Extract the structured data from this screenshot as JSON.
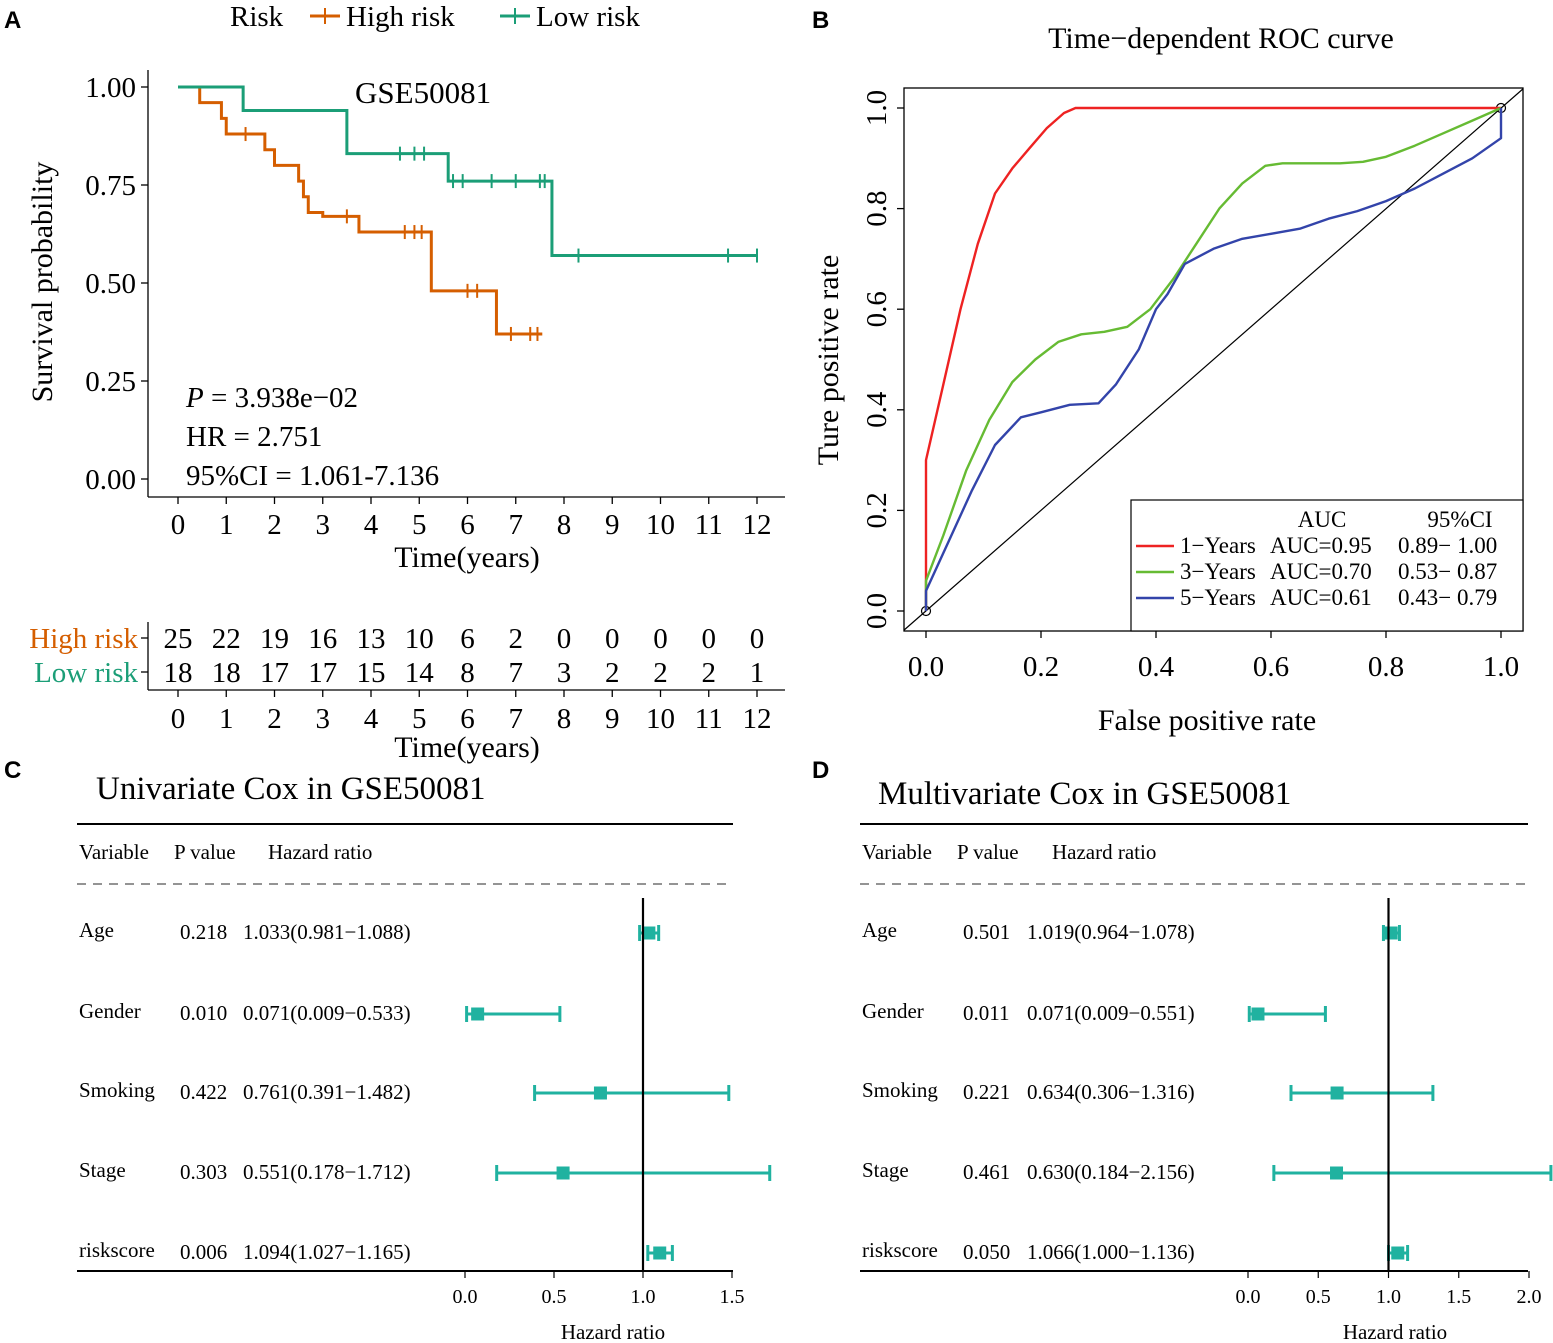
{
  "panels": {
    "a": "A",
    "b": "B",
    "c": "C",
    "d": "D"
  },
  "colors": {
    "high": "#d55e00",
    "low": "#1b9e77",
    "forest": "#20b2a0",
    "roc1": "#ee2222",
    "roc3": "#66bb33",
    "roc5": "#3344aa"
  },
  "chart_data": [
    {
      "type": "line",
      "subtype": "kaplan-meier",
      "title": "GSE50081",
      "xlabel": "Time(years)",
      "ylabel": "Survival probability",
      "xlim": [
        0,
        12
      ],
      "ylim": [
        0,
        1
      ],
      "x_ticks": [
        "0",
        "1",
        "2",
        "3",
        "4",
        "5",
        "6",
        "7",
        "8",
        "9",
        "10",
        "11",
        "12"
      ],
      "y_ticks": [
        "0.00",
        "0.25",
        "0.50",
        "0.75",
        "1.00"
      ],
      "legend": {
        "title": "Risk",
        "entries": [
          "High risk",
          "Low risk"
        ]
      },
      "stats": {
        "p_label": "P",
        "p_value": "= 3.938e−02",
        "hr": "HR = 2.751",
        "ci": "95%CI = 1.061-7.136"
      },
      "series": [
        {
          "name": "High risk",
          "color": "#d55e00",
          "steps": [
            [
              0,
              1.0
            ],
            [
              0.45,
              0.96
            ],
            [
              0.9,
              0.92
            ],
            [
              1.0,
              0.88
            ],
            [
              1.8,
              0.84
            ],
            [
              2.0,
              0.8
            ],
            [
              2.5,
              0.76
            ],
            [
              2.6,
              0.72
            ],
            [
              2.7,
              0.68
            ],
            [
              3.0,
              0.67
            ],
            [
              3.75,
              0.63
            ],
            [
              5.25,
              0.48
            ],
            [
              6.6,
              0.37
            ],
            [
              7.55,
              0.37
            ]
          ],
          "censor": [
            [
              1.4,
              0.88
            ],
            [
              3.5,
              0.67
            ],
            [
              4.7,
              0.63
            ],
            [
              4.9,
              0.63
            ],
            [
              5.05,
              0.63
            ],
            [
              6.0,
              0.48
            ],
            [
              6.2,
              0.48
            ],
            [
              6.9,
              0.37
            ],
            [
              7.3,
              0.37
            ],
            [
              7.45,
              0.37
            ]
          ]
        },
        {
          "name": "Low risk",
          "color": "#1b9e77",
          "steps": [
            [
              0,
              1.0
            ],
            [
              1.35,
              0.94
            ],
            [
              3.5,
              0.83
            ],
            [
              5.6,
              0.76
            ],
            [
              7.75,
              0.57
            ],
            [
              12.0,
              0.57
            ]
          ],
          "censor": [
            [
              4.6,
              0.83
            ],
            [
              4.9,
              0.83
            ],
            [
              5.1,
              0.83
            ],
            [
              5.7,
              0.76
            ],
            [
              5.9,
              0.76
            ],
            [
              6.5,
              0.76
            ],
            [
              7.0,
              0.76
            ],
            [
              7.5,
              0.76
            ],
            [
              7.6,
              0.76
            ],
            [
              8.3,
              0.57
            ],
            [
              11.4,
              0.57
            ],
            [
              12.0,
              0.57
            ]
          ]
        }
      ],
      "risk_table": {
        "xlabel": "Time(years)",
        "rows": [
          {
            "label": "High risk",
            "color": "#d55e00",
            "values": [
              "25",
              "22",
              "19",
              "16",
              "13",
              "10",
              "6",
              "2",
              "0",
              "0",
              "0",
              "0",
              "0"
            ]
          },
          {
            "label": "Low risk",
            "color": "#1b9e77",
            "values": [
              "18",
              "18",
              "17",
              "17",
              "15",
              "14",
              "8",
              "7",
              "3",
              "2",
              "2",
              "2",
              "1"
            ]
          }
        ]
      }
    },
    {
      "type": "line",
      "subtype": "roc",
      "title": "Time−dependent ROC curve",
      "xlabel": "False positive rate",
      "ylabel": "Ture positive rate",
      "xlim": [
        0,
        1
      ],
      "ylim": [
        0,
        1
      ],
      "x_ticks": [
        "0.0",
        "0.2",
        "0.4",
        "0.6",
        "0.8",
        "1.0"
      ],
      "y_ticks": [
        "0.0",
        "0.2",
        "0.4",
        "0.6",
        "0.8",
        "1.0"
      ],
      "legend": {
        "headers": [
          "AUC",
          "95%CI"
        ],
        "rows": [
          {
            "name": "1−Years",
            "auc": "AUC=0.95",
            "ci": "0.89− 1.00"
          },
          {
            "name": "3−Years",
            "auc": "AUC=0.70",
            "ci": "0.53− 0.87"
          },
          {
            "name": "5−Years",
            "auc": "AUC=0.61",
            "ci": "0.43− 0.79"
          }
        ]
      },
      "series": [
        {
          "name": "1−Years",
          "color": "#ee2222",
          "points": [
            [
              0,
              0
            ],
            [
              0,
              0.3
            ],
            [
              0.03,
              0.45
            ],
            [
              0.06,
              0.6
            ],
            [
              0.09,
              0.73
            ],
            [
              0.12,
              0.83
            ],
            [
              0.15,
              0.88
            ],
            [
              0.18,
              0.92
            ],
            [
              0.21,
              0.96
            ],
            [
              0.24,
              0.99
            ],
            [
              0.26,
              1.0
            ],
            [
              0.4,
              1.0
            ],
            [
              0.6,
              1.0
            ],
            [
              0.8,
              1.0
            ],
            [
              1.0,
              1.0
            ]
          ]
        },
        {
          "name": "3−Years",
          "color": "#66bb33",
          "points": [
            [
              0,
              0
            ],
            [
              0,
              0.06
            ],
            [
              0.03,
              0.15
            ],
            [
              0.07,
              0.28
            ],
            [
              0.11,
              0.38
            ],
            [
              0.15,
              0.455
            ],
            [
              0.19,
              0.5
            ],
            [
              0.23,
              0.535
            ],
            [
              0.27,
              0.55
            ],
            [
              0.31,
              0.555
            ],
            [
              0.35,
              0.565
            ],
            [
              0.39,
              0.6
            ],
            [
              0.43,
              0.66
            ],
            [
              0.47,
              0.73
            ],
            [
              0.51,
              0.8
            ],
            [
              0.55,
              0.85
            ],
            [
              0.59,
              0.885
            ],
            [
              0.62,
              0.89
            ],
            [
              0.66,
              0.89
            ],
            [
              0.72,
              0.89
            ],
            [
              0.76,
              0.893
            ],
            [
              0.8,
              0.903
            ],
            [
              0.85,
              0.925
            ],
            [
              0.9,
              0.95
            ],
            [
              0.95,
              0.975
            ],
            [
              1.0,
              1.0
            ]
          ]
        },
        {
          "name": "5−Years",
          "color": "#3344aa",
          "points": [
            [
              0,
              0
            ],
            [
              0,
              0.04
            ],
            [
              0.04,
              0.14
            ],
            [
              0.08,
              0.24
            ],
            [
              0.12,
              0.33
            ],
            [
              0.165,
              0.385
            ],
            [
              0.2,
              0.395
            ],
            [
              0.25,
              0.41
            ],
            [
              0.3,
              0.413
            ],
            [
              0.33,
              0.45
            ],
            [
              0.37,
              0.52
            ],
            [
              0.4,
              0.6
            ],
            [
              0.42,
              0.63
            ],
            [
              0.45,
              0.69
            ],
            [
              0.5,
              0.72
            ],
            [
              0.55,
              0.74
            ],
            [
              0.6,
              0.75
            ],
            [
              0.65,
              0.76
            ],
            [
              0.7,
              0.78
            ],
            [
              0.75,
              0.795
            ],
            [
              0.8,
              0.815
            ],
            [
              0.85,
              0.84
            ],
            [
              0.9,
              0.87
            ],
            [
              0.95,
              0.9
            ],
            [
              1.0,
              0.94
            ],
            [
              1.0,
              1.0
            ]
          ]
        }
      ]
    },
    {
      "type": "forest",
      "title": "Univariate Cox in GSE50081",
      "xlabel": "Hazard ratio",
      "headers": [
        "Variable",
        "P value",
        "Hazard ratio"
      ],
      "xlim": [
        0,
        1.5
      ],
      "x_ticks": [
        "0.0",
        "0.5",
        "1.0",
        "1.5"
      ],
      "rows": [
        {
          "variable": "Age",
          "p": "0.218",
          "hr_text": "1.033(0.981−1.088)",
          "hr": 1.033,
          "lo": 0.981,
          "hi": 1.088
        },
        {
          "variable": "Gender",
          "p": "0.010",
          "hr_text": "0.071(0.009−0.533)",
          "hr": 0.071,
          "lo": 0.009,
          "hi": 0.533
        },
        {
          "variable": "Smoking",
          "p": "0.422",
          "hr_text": "0.761(0.391−1.482)",
          "hr": 0.761,
          "lo": 0.391,
          "hi": 1.482
        },
        {
          "variable": "Stage",
          "p": "0.303",
          "hr_text": "0.551(0.178−1.712)",
          "hr": 0.551,
          "lo": 0.178,
          "hi": 1.712
        },
        {
          "variable": "riskscore",
          "p": "0.006",
          "hr_text": "1.094(1.027−1.165)",
          "hr": 1.094,
          "lo": 1.027,
          "hi": 1.165
        }
      ]
    },
    {
      "type": "forest",
      "title": "Multivariate Cox in GSE50081",
      "xlabel": "Hazard ratio",
      "headers": [
        "Variable",
        "P value",
        "Hazard ratio"
      ],
      "xlim": [
        0,
        2.0
      ],
      "x_ticks": [
        "0.0",
        "0.5",
        "1.0",
        "1.5",
        "2.0"
      ],
      "rows": [
        {
          "variable": "Age",
          "p": "0.501",
          "hr_text": "1.019(0.964−1.078)",
          "hr": 1.019,
          "lo": 0.964,
          "hi": 1.078
        },
        {
          "variable": "Gender",
          "p": "0.011",
          "hr_text": "0.071(0.009−0.551)",
          "hr": 0.071,
          "lo": 0.009,
          "hi": 0.551
        },
        {
          "variable": "Smoking",
          "p": "0.221",
          "hr_text": "0.634(0.306−1.316)",
          "hr": 0.634,
          "lo": 0.306,
          "hi": 1.316
        },
        {
          "variable": "Stage",
          "p": "0.461",
          "hr_text": "0.630(0.184−2.156)",
          "hr": 0.63,
          "lo": 0.184,
          "hi": 2.156
        },
        {
          "variable": "riskscore",
          "p": "0.050",
          "hr_text": "1.066(1.000−1.136)",
          "hr": 1.066,
          "lo": 1.0,
          "hi": 1.136
        }
      ]
    }
  ]
}
